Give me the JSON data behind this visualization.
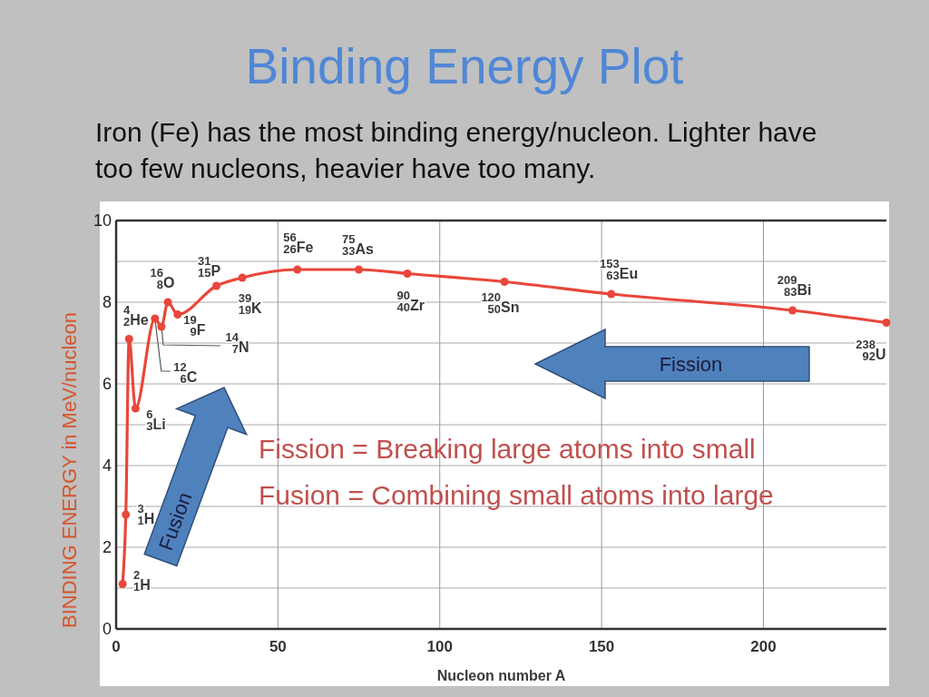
{
  "chart_data": {
    "type": "line",
    "title": "Binding Energy Plot",
    "subtitle": "Iron (Fe) has the most binding energy/nucleon. Lighter have too few nucleons, heavier have too many.",
    "xlabel": "Nucleon number A",
    "ylabel": "BINDING ENERGY in MeV/nucleon",
    "x": [
      2,
      3,
      4,
      6,
      12,
      14,
      16,
      19,
      31,
      39,
      56,
      75,
      90,
      120,
      153,
      209,
      238
    ],
    "values": [
      1.1,
      2.8,
      7.1,
      5.4,
      7.6,
      7.4,
      8.0,
      7.7,
      8.4,
      8.6,
      8.8,
      8.8,
      8.7,
      8.5,
      8.2,
      7.8,
      7.5
    ],
    "color": "#e8473b",
    "marker": "circle",
    "line_style": "solid",
    "xlim": [
      0,
      238
    ],
    "xticks": [
      0,
      50,
      100,
      150,
      200
    ],
    "ylim": [
      0,
      10
    ],
    "yticks": [
      0,
      {
        "value": 1,
        "label": null
      },
      2,
      {
        "value": 3,
        "label": null
      },
      4,
      {
        "value": 5,
        "label": null
      },
      6,
      {
        "value": 7,
        "label": null
      },
      8,
      {
        "value": 9,
        "label": null
      },
      10
    ],
    "grid": true,
    "annotations": [
      {
        "text": "$^{2}$$_{1}$H",
        "x": 2,
        "y": 1.1
      },
      {
        "text": "$^{3}$$_{1}$H",
        "x": 3,
        "y": 2.8
      },
      {
        "text": "$^{4}$$_{2}$He",
        "x": 4,
        "y": 7.1
      },
      {
        "text": "$^{6}$$_{3}$Li",
        "x": 6,
        "y": 5.4
      },
      {
        "text": "$^{12}$$_{6}$C",
        "x": 12,
        "y": 7.6
      },
      {
        "text": "$^{14}$$_{7}$N",
        "x": 14,
        "y": 7.4
      },
      {
        "text": "$^{16}$$_{8}$O",
        "x": 16,
        "y": 8.0
      },
      {
        "text": "$^{19}$$_{9}$F",
        "x": 19,
        "y": 7.7
      },
      {
        "text": "$^{31}$$_{15}$P",
        "x": 31,
        "y": 8.4
      },
      {
        "text": "$^{39}$$_{19}$K",
        "x": 39,
        "y": 8.6
      },
      {
        "text": "$^{56}$$_{26}$Fe",
        "x": 56,
        "y": 8.8
      },
      {
        "text": "$^{75}$$_{33}$As",
        "x": 75,
        "y": 8.8
      },
      {
        "text": "$^{90}$$_{40}$Zr",
        "x": 90,
        "y": 8.7
      },
      {
        "text": "$^{120}$$_{50}$Sn",
        "x": 120,
        "y": 8.5
      },
      {
        "text": "$^{153}$$_{63}$Eu",
        "x": 153,
        "y": 8.2
      },
      {
        "text": "$^{209}$$_{83}$Bi",
        "x": 209,
        "y": 7.8
      },
      {
        "text": "$^{238}$$_{92}$U",
        "x": 238,
        "y": 7.5
      },
      "Fission",
      "Fusion",
      "Fission = Breaking large atoms into small",
      "Fusion = Combining small atoms into large"
    ]
  }
}
